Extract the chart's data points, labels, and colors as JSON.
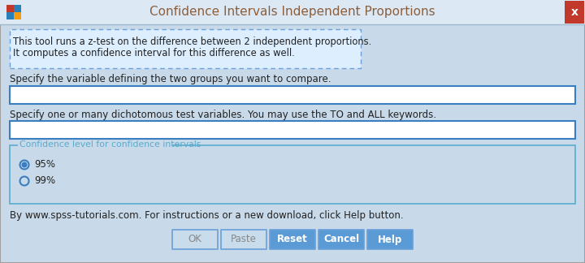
{
  "title": "Confidence Intervals Independent Proportions",
  "bg_color": "#c8daea",
  "titlebar_bg": "#dce9f5",
  "titlebar_text_color": "#8b5e3c",
  "title_fontsize": 11,
  "close_btn_color": "#c0392b",
  "close_btn_text": "x",
  "info_box_text_line1": "This tool runs a z-test on the difference between 2 independent proportions.",
  "info_box_text_line2": "It computes a confidence interval for this difference as well.",
  "info_box_border": "#6a9fd8",
  "info_box_bg": "#ddeeff",
  "label1": "Specify the variable defining the two groups you want to compare.",
  "label2": "Specify one or many dichotomous test variables. You may use the TO and ALL keywords.",
  "input_bg": "#ffffff",
  "input_border": "#3a7ebf",
  "group_label": "Confidence level for confidence intervals",
  "group_border": "#5aabcc",
  "radio1": "95%",
  "radio2": "99%",
  "footer_text": "By www.spss-tutorials.com. For instructions or a new download, click Help button.",
  "buttons": [
    "OK",
    "Paste",
    "Reset",
    "Cancel",
    "Help"
  ],
  "button_bg_inactive": "#c8dcec",
  "button_bg_active": "#5b9bd5",
  "button_border": "#6a9fd8",
  "button_active_list": [
    "Reset",
    "Cancel",
    "Help"
  ],
  "outer_border": "#a0a0a0",
  "font_color": "#222222",
  "font_size": 8.5
}
